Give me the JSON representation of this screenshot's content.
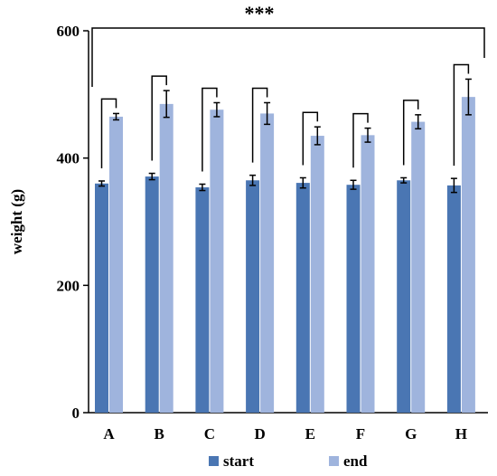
{
  "chart_data": {
    "type": "bar",
    "categories": [
      "A",
      "B",
      "C",
      "D",
      "E",
      "F",
      "G",
      "H"
    ],
    "series": [
      {
        "name": "start",
        "color": "#4a76b3",
        "values": [
          360,
          371,
          354,
          365,
          361,
          358,
          365,
          357
        ],
        "errors": [
          4,
          5,
          5,
          8,
          8,
          7,
          4,
          11
        ]
      },
      {
        "name": "end",
        "color": "#9fb4dd",
        "values": [
          465,
          485,
          476,
          470,
          435,
          436,
          457,
          496
        ],
        "errors": [
          5,
          21,
          11,
          17,
          14,
          11,
          11,
          28
        ]
      }
    ],
    "ylabel": "weight (g)",
    "xlabel": "",
    "ylim": [
      0,
      600
    ],
    "yticks": [
      0,
      200,
      400,
      600
    ],
    "grid": false,
    "legend_position": "bottom",
    "annotations": {
      "overall_significance": "***",
      "pairwise_brackets": true
    }
  }
}
